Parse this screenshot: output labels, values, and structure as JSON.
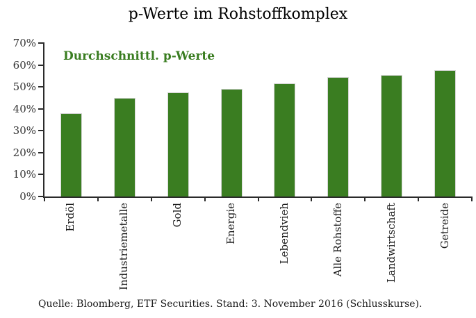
{
  "title": "p-Werte im Rohstoffkomplex",
  "legend_label": "Durchschnittl. p-Werte",
  "footer": "Quelle: Bloomberg, ETF Securities. Stand: 3. November 2016 (Schlusskurse).",
  "colors": {
    "bar": "#3a7d21",
    "bar_edge": "#d6d6d6",
    "legend_text": "#3a7d21",
    "axis": "#2b2b2b"
  },
  "chart_data": {
    "type": "bar",
    "title": "p-Werte im Rohstoffkomplex",
    "legend": "Durchschnittl. p-Werte",
    "categories": [
      "Erdöl",
      "Industriemetalle",
      "Gold",
      "Energie",
      "Lebendvieh",
      "Alle Rohstoffe",
      "Landwirtschaft",
      "Getreide"
    ],
    "values": [
      38,
      45,
      47.5,
      49,
      51.5,
      54.5,
      55.5,
      57.5
    ],
    "unit": "%",
    "xlabel": "",
    "ylabel": "",
    "ylim": [
      0,
      70
    ],
    "yticks": [
      0,
      10,
      20,
      30,
      40,
      50,
      60,
      70
    ],
    "ytick_labels": [
      "0%",
      "10%",
      "20%",
      "30%",
      "40%",
      "50%",
      "60%",
      "70%"
    ],
    "grid": false,
    "legend_position": "top-left-inside",
    "bar_color": "#3a7d21",
    "source_note": "Quelle: Bloomberg, ETF Securities. Stand: 3. November 2016 (Schlusskurse)."
  }
}
